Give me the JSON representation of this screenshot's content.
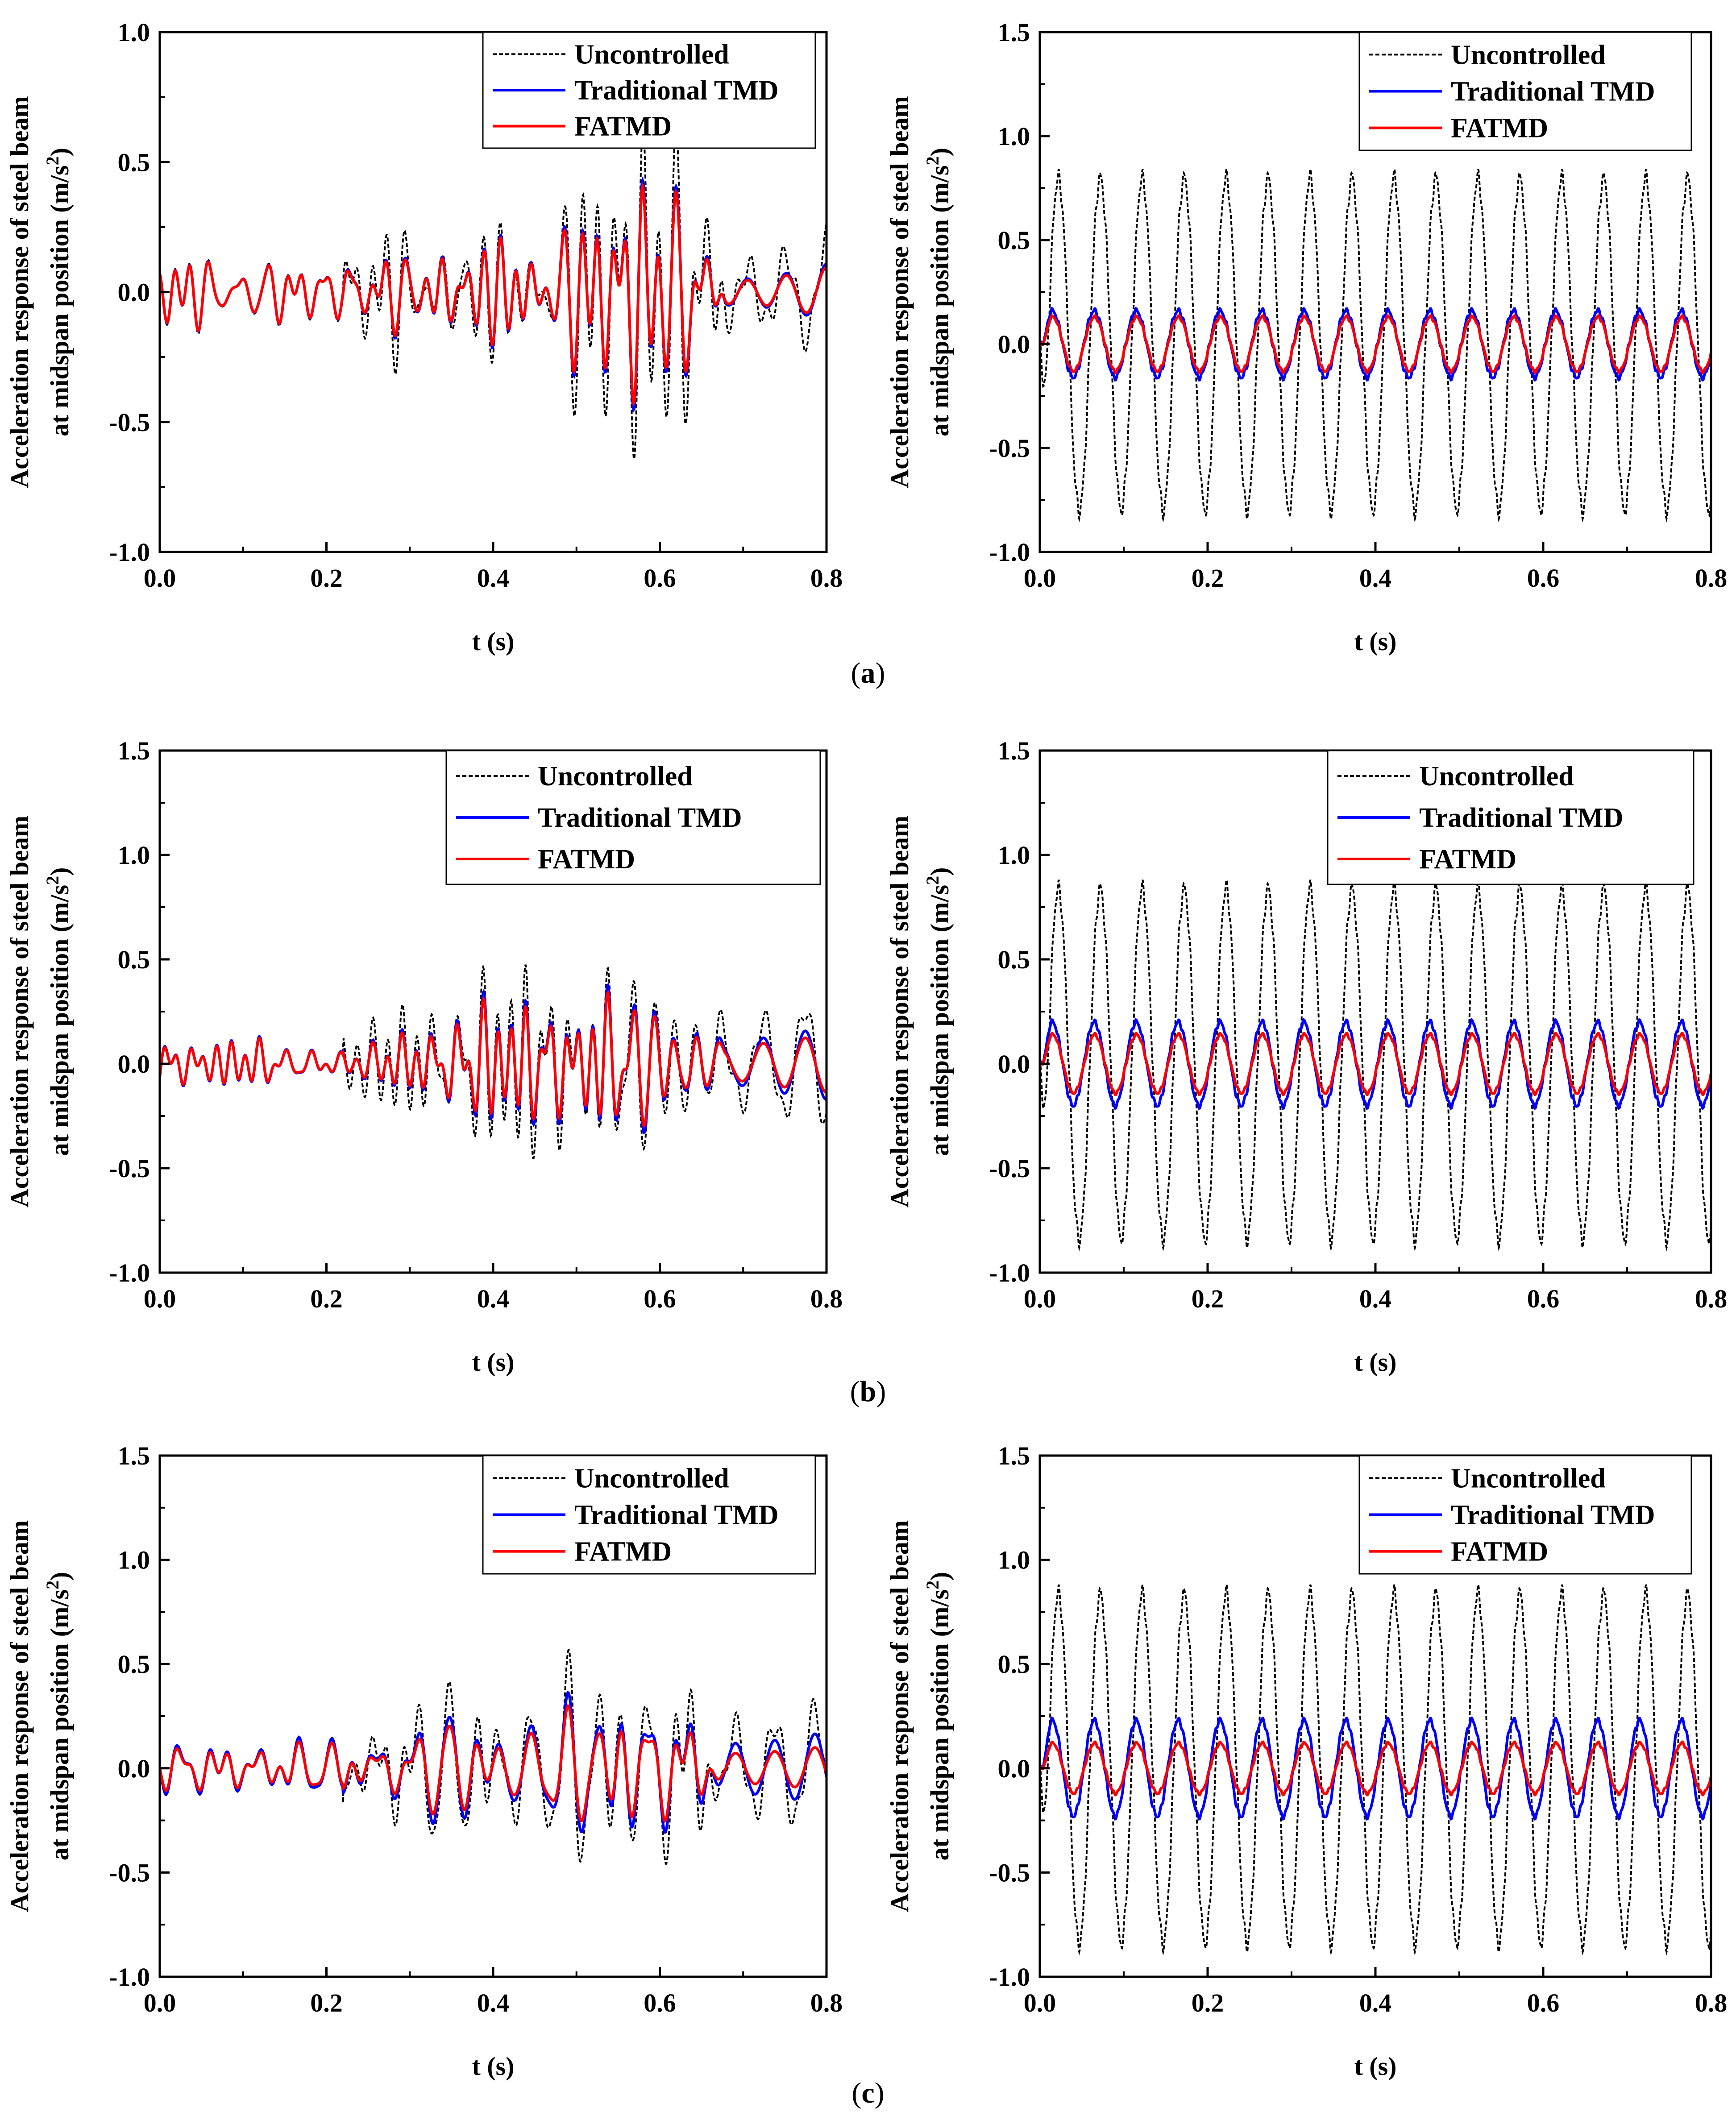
{
  "figure": {
    "captions": [
      "a",
      "b",
      "c"
    ]
  },
  "styles": {
    "colors": {
      "uncontrolled": "#000000",
      "traditional": "#0000ff",
      "fatmd": "#ff0000"
    }
  },
  "chart_data": [
    {
      "id": "a-left",
      "type": "line",
      "row": 0,
      "col": 0,
      "xlabel": "t (s)",
      "ylabel_line1": "Acceleration response of steel beam",
      "ylabel_line2": "at midspan position (m/s",
      "ylabel_sup": "2",
      "ylabel_close": ")",
      "xlim": [
        0,
        0.8
      ],
      "ylim": [
        -1.0,
        1.0
      ],
      "xticks": [
        "0.0",
        "0.2",
        "0.4",
        "0.6",
        "0.8"
      ],
      "yticks": [
        "-1.0",
        "-0.5",
        "0.0",
        "0.5",
        "1.0"
      ],
      "legend": [
        "Uncontrolled",
        "Traditional TMD",
        "FATMD"
      ],
      "signal": {
        "kind": "transient",
        "unc_peak": 0.55,
        "tmd_peak": 0.38,
        "fat_peak": 0.36,
        "seed": 3,
        "bs": 0.75,
        "fs": 0.7
      }
    },
    {
      "id": "a-right",
      "type": "line",
      "row": 0,
      "col": 1,
      "xlabel": "t (s)",
      "ylabel_line1": "Acceleration response of steel beam",
      "ylabel_line2": "at midspan position (m/s",
      "ylabel_sup": "2",
      "ylabel_close": ")",
      "xlim": [
        0,
        0.8
      ],
      "ylim": [
        -1.0,
        1.5
      ],
      "xticks": [
        "0.0",
        "0.2",
        "0.4",
        "0.6",
        "0.8"
      ],
      "yticks": [
        "-1.0",
        "-0.5",
        "0.0",
        "0.5",
        "1.0",
        "1.5"
      ],
      "legend": [
        "Uncontrolled",
        "Traditional TMD",
        "FATMD"
      ],
      "signal": {
        "kind": "steady",
        "freq": 20,
        "unc_amp": 0.8,
        "tmd_amp": 0.16,
        "fat_amp": 0.13
      }
    },
    {
      "id": "b-left",
      "type": "line",
      "row": 1,
      "col": 0,
      "xlabel": "t (s)",
      "ylabel_line1": "Acceleration response of steel beam",
      "ylabel_line2": "at midspan position (m/s",
      "ylabel_sup": "2",
      "ylabel_close": ")",
      "xlim": [
        0,
        0.8
      ],
      "ylim": [
        -1.0,
        1.5
      ],
      "xticks": [
        "0.0",
        "0.2",
        "0.4",
        "0.6",
        "0.8"
      ],
      "yticks": [
        "-1.0",
        "-0.5",
        "0.0",
        "0.5",
        "1.0",
        "1.5"
      ],
      "legend": [
        "Uncontrolled",
        "Traditional TMD",
        "FATMD"
      ],
      "signal": {
        "kind": "transient",
        "unc_peak": 0.58,
        "tmd_peak": 0.42,
        "fat_peak": 0.38,
        "seed": 7,
        "bs": 0.8,
        "fs": 0.7
      }
    },
    {
      "id": "b-right",
      "type": "line",
      "row": 1,
      "col": 1,
      "xlabel": "t (s)",
      "ylabel_line1": "Acceleration response of steel beam",
      "ylabel_line2": "at midspan position (m/s",
      "ylabel_sup": "2",
      "ylabel_close": ")",
      "xlim": [
        0,
        0.8
      ],
      "ylim": [
        -1.0,
        1.5
      ],
      "xticks": [
        "0.0",
        "0.2",
        "0.4",
        "0.6",
        "0.8"
      ],
      "yticks": [
        "-1.0",
        "-0.5",
        "0.0",
        "0.5",
        "1.0",
        "1.5"
      ],
      "legend": [
        "Uncontrolled",
        "Traditional TMD",
        "FATMD"
      ],
      "signal": {
        "kind": "steady",
        "freq": 20,
        "unc_amp": 0.84,
        "tmd_amp": 0.2,
        "fat_amp": 0.14
      }
    },
    {
      "id": "c-left",
      "type": "line",
      "row": 2,
      "col": 0,
      "xlabel": "t (s)",
      "ylabel_line1": "Acceleration response of steel beam",
      "ylabel_line2": "at midspan position (m/s",
      "ylabel_sup": "2",
      "ylabel_close": ")",
      "xlim": [
        0,
        0.8
      ],
      "ylim": [
        -1.0,
        1.5
      ],
      "xticks": [
        "0.0",
        "0.2",
        "0.4",
        "0.6",
        "0.8"
      ],
      "yticks": [
        "-1.0",
        "-0.5",
        "0.0",
        "0.5",
        "1.0",
        "1.5"
      ],
      "legend": [
        "Uncontrolled",
        "Traditional TMD",
        "FATMD"
      ],
      "signal": {
        "kind": "transient",
        "unc_peak": 0.65,
        "tmd_peak": 0.46,
        "fat_peak": 0.38,
        "seed": 11,
        "bs": 0.85,
        "fs": 0.62
      }
    },
    {
      "id": "c-right",
      "type": "line",
      "row": 2,
      "col": 1,
      "xlabel": "t (s)",
      "ylabel_line1": "Acceleration response of steel beam",
      "ylabel_line2": "at midspan position (m/s",
      "ylabel_sup": "2",
      "ylabel_close": ")",
      "xlim": [
        0,
        0.8
      ],
      "ylim": [
        -1.0,
        1.5
      ],
      "xticks": [
        "0.0",
        "0.2",
        "0.4",
        "0.6",
        "0.8"
      ],
      "yticks": [
        "-1.0",
        "-0.5",
        "0.0",
        "0.5",
        "1.0",
        "1.5"
      ],
      "legend": [
        "Uncontrolled",
        "Traditional TMD",
        "FATMD"
      ],
      "signal": {
        "kind": "steady",
        "freq": 20,
        "unc_amp": 0.84,
        "tmd_amp": 0.23,
        "fat_amp": 0.12
      }
    }
  ]
}
